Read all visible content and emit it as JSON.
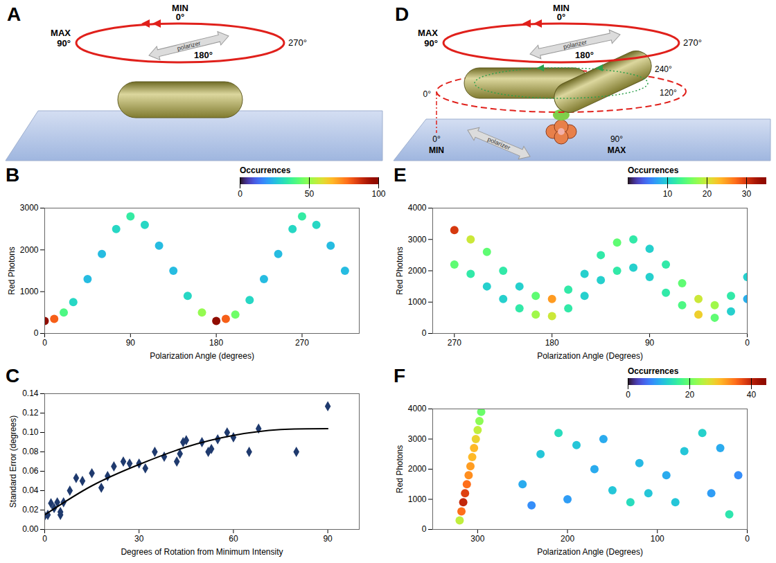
{
  "diagrams": [
    {
      "panel_label": "A",
      "ring": {
        "min_label": "MIN",
        "max_label": "MAX",
        "angle_labels": [
          "0°",
          "90°",
          "180°",
          "270°"
        ]
      },
      "polarizer": "polarizer"
    },
    {
      "panel_label": "D",
      "ring": {
        "min_label": "MIN",
        "max_label": "MAX",
        "angle_labels": [
          "0°",
          "90°",
          "180°",
          "270°"
        ]
      },
      "rotation_labels": [
        "0°",
        "120°",
        "240°"
      ],
      "plane": {
        "min_label": "MIN",
        "max_label": "MAX",
        "angle_labels": [
          "0°",
          "90°"
        ]
      },
      "polarizer": "polarizer"
    }
  ],
  "chart_data": [
    {
      "panel_label": "B",
      "type": "waterfall",
      "x_label": "Polarization Angle (degrees)",
      "y_label": "Red Photons",
      "z_label": "Occurrences",
      "xlim": [
        0,
        330
      ],
      "xticks": [
        0,
        90,
        180,
        270
      ],
      "ylim": [
        0,
        3000
      ],
      "yticks": [
        0,
        1000,
        2000,
        3000
      ],
      "zlim": [
        0,
        100
      ],
      "zticks": [
        0,
        50,
        100
      ],
      "x": [
        0,
        10,
        20,
        30,
        45,
        60,
        75,
        90,
        105,
        120,
        135,
        150,
        165,
        180,
        190,
        200,
        215,
        230,
        245,
        260,
        270,
        285,
        300,
        315
      ],
      "y": [
        300,
        350,
        500,
        750,
        1300,
        1900,
        2500,
        2800,
        2600,
        2100,
        1500,
        900,
        500,
        300,
        350,
        450,
        800,
        1300,
        1900,
        2500,
        2800,
        2600,
        2100,
        1500
      ],
      "values": [
        100,
        80,
        40,
        30,
        25,
        25,
        30,
        35,
        30,
        25,
        25,
        30,
        50,
        100,
        80,
        45,
        30,
        25,
        25,
        30,
        35,
        30,
        25,
        25
      ]
    },
    {
      "panel_label": "C",
      "type": "scatter",
      "x_label": "Degrees of Rotation from Minimum Intensity",
      "y_label": "Standard Error (degrees)",
      "xlim": [
        0,
        100
      ],
      "xticks": [
        0,
        30,
        60,
        90
      ],
      "ylim": [
        0,
        0.14
      ],
      "yticks": [
        {
          "value": 0,
          "label": "0.00"
        },
        {
          "value": 0.02,
          "label": "0.02"
        },
        {
          "value": 0.04,
          "label": "0.04"
        },
        {
          "value": 0.06,
          "label": "0.06"
        },
        {
          "value": 0.08,
          "label": "0.08"
        },
        {
          "value": 0.1,
          "label": "0.10"
        },
        {
          "value": 0.12,
          "label": "0.12"
        },
        {
          "value": 0.14,
          "label": "0.14"
        }
      ],
      "series": [
        {
          "type": "scatter",
          "color": "#1f3a6e",
          "marker": "diamond",
          "x": [
            0,
            1,
            2,
            3,
            4,
            5,
            5,
            6,
            8,
            10,
            12,
            15,
            18,
            20,
            22,
            25,
            27,
            30,
            32,
            35,
            38,
            42,
            43,
            44,
            45,
            50,
            52,
            53,
            55,
            58,
            60,
            65,
            68,
            80,
            90
          ],
          "values": [
            0.014,
            0.015,
            0.027,
            0.022,
            0.028,
            0.015,
            0.018,
            0.028,
            0.04,
            0.053,
            0.05,
            0.058,
            0.043,
            0.055,
            0.065,
            0.07,
            0.068,
            0.068,
            0.063,
            0.08,
            0.075,
            0.07,
            0.078,
            0.09,
            0.092,
            0.09,
            0.08,
            0.083,
            0.093,
            0.1,
            0.095,
            0.08,
            0.104,
            0.08,
            0.127
          ]
        },
        {
          "type": "line",
          "color": "#000000",
          "line_style": "solid",
          "x": [
            0,
            15,
            30,
            45,
            60,
            75,
            90
          ],
          "values": [
            0.015,
            0.045,
            0.067,
            0.085,
            0.097,
            0.103,
            0.104
          ]
        }
      ]
    },
    {
      "panel_label": "E",
      "type": "waterfall",
      "x_label": "Polarization Angle (Degrees)",
      "y_label": "Red Photons",
      "z_label": "Occurrences",
      "xlim": [
        290,
        0
      ],
      "xticks": [
        270,
        180,
        90,
        0
      ],
      "ylim": [
        0,
        4000
      ],
      "yticks": [
        0,
        1000,
        2000,
        3000,
        4000
      ],
      "zlim": [
        0,
        35
      ],
      "zticks": [
        10,
        20,
        30
      ],
      "x": [
        270,
        255,
        240,
        225,
        210,
        195,
        180,
        165,
        150,
        135,
        120,
        105,
        90,
        75,
        60,
        45,
        30,
        15,
        0,
        270,
        255,
        240,
        225,
        210,
        195,
        180,
        165,
        150,
        135,
        120,
        105,
        90,
        75,
        60,
        45,
        30,
        15,
        0
      ],
      "y": [
        3300,
        3000,
        2600,
        2000,
        1500,
        1200,
        1100,
        1400,
        1900,
        2500,
        2900,
        3000,
        2700,
        2200,
        1600,
        1100,
        900,
        1200,
        1800,
        2200,
        1900,
        1500,
        1100,
        800,
        600,
        550,
        800,
        1200,
        1700,
        2000,
        2100,
        1800,
        1300,
        900,
        600,
        500,
        700,
        1100
      ],
      "values": [
        30,
        20,
        15,
        12,
        10,
        15,
        25,
        12,
        10,
        12,
        15,
        12,
        10,
        12,
        15,
        20,
        18,
        12,
        10,
        15,
        12,
        10,
        10,
        12,
        18,
        20,
        12,
        10,
        10,
        12,
        10,
        10,
        12,
        14,
        22,
        15,
        10,
        8
      ]
    },
    {
      "panel_label": "F",
      "type": "waterfall",
      "x_label": "Polarization Angle (Degrees)",
      "y_label": "Red Photons",
      "z_label": "Occurrences",
      "xlim": [
        350,
        0
      ],
      "xticks": [
        300,
        200,
        100,
        0
      ],
      "ylim": [
        0,
        4000
      ],
      "yticks": [
        0,
        1000,
        2000,
        3000,
        4000
      ],
      "zlim": [
        0,
        45
      ],
      "zticks": [
        0,
        20,
        40
      ],
      "x": [
        320,
        318,
        316,
        314,
        312,
        310,
        308,
        306,
        304,
        302,
        300,
        298,
        296,
        250,
        230,
        210,
        190,
        170,
        150,
        130,
        110,
        90,
        70,
        50,
        30,
        10,
        240,
        200,
        160,
        120,
        80,
        40,
        20
      ],
      "y": [
        300,
        600,
        900,
        1200,
        1500,
        1800,
        2100,
        2400,
        2700,
        3000,
        3300,
        3600,
        3900,
        1500,
        2500,
        3200,
        2800,
        2000,
        1300,
        900,
        1200,
        1800,
        2600,
        3200,
        2700,
        1800,
        800,
        1000,
        3000,
        2200,
        900,
        1200,
        500
      ],
      "values": [
        25,
        35,
        40,
        38,
        35,
        33,
        32,
        30,
        30,
        28,
        25,
        22,
        20,
        10,
        12,
        14,
        12,
        10,
        12,
        14,
        12,
        10,
        12,
        13,
        10,
        8,
        8,
        9,
        10,
        11,
        12,
        9,
        15
      ]
    }
  ]
}
